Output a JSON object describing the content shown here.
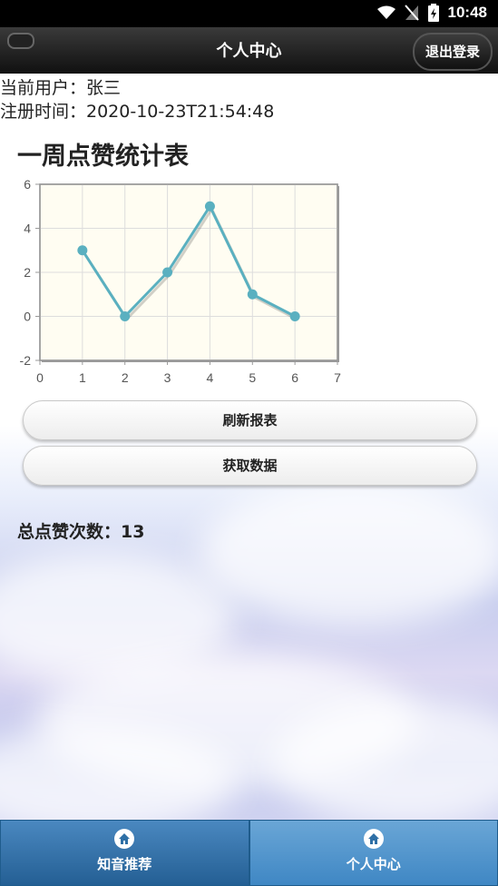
{
  "status_bar": {
    "time": "10:48"
  },
  "header": {
    "title": "个人中心",
    "logout_label": "退出登录"
  },
  "user": {
    "current_user": "当前用户：张三",
    "register_time": "注册时间：2020-10-23T21:54:48"
  },
  "chart_title": "一周点赞统计表",
  "chart_data": {
    "type": "line",
    "x": [
      1,
      2,
      3,
      4,
      5,
      6
    ],
    "series": [
      {
        "values": [
          3,
          0,
          2,
          5,
          1,
          0
        ]
      }
    ],
    "xlim": [
      0,
      7
    ],
    "ylim": [
      -2,
      6
    ],
    "xticks": [
      0,
      1,
      2,
      3,
      4,
      5,
      6,
      7
    ],
    "yticks": [
      -2,
      0,
      2,
      4,
      6
    ],
    "grid": true,
    "line_color": "#5ab0c0",
    "plot_background": "#fffdf2"
  },
  "buttons": {
    "refresh": "刷新报表",
    "fetch": "获取数据"
  },
  "total_likes": "总点赞次数：13",
  "tabs": [
    {
      "label": "知音推荐",
      "icon": "home-icon"
    },
    {
      "label": "个人中心",
      "icon": "home-icon"
    }
  ]
}
